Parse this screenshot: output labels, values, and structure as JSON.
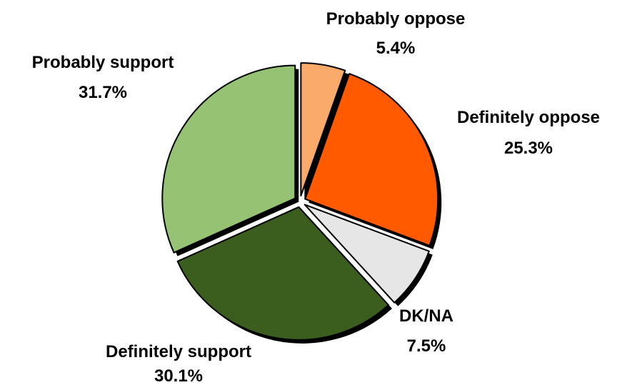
{
  "chart_data": {
    "type": "pie",
    "title": "",
    "slices": [
      {
        "label": "Probably oppose",
        "value": 5.4,
        "value_label": "5.4%",
        "color": "#FAAA6A"
      },
      {
        "label": "Definitely oppose",
        "value": 25.3,
        "value_label": "25.3%",
        "color": "#FF5A00"
      },
      {
        "label": "DK/NA",
        "value": 7.5,
        "value_label": "7.5%",
        "color": "#E6E6E6"
      },
      {
        "label": "Definitely support",
        "value": 30.1,
        "value_label": "30.1%",
        "color": "#3B5E1F"
      },
      {
        "label": "Probably support",
        "value": 31.7,
        "value_label": "31.7%",
        "color": "#96C373"
      }
    ],
    "exploded": true,
    "legend": "none"
  }
}
